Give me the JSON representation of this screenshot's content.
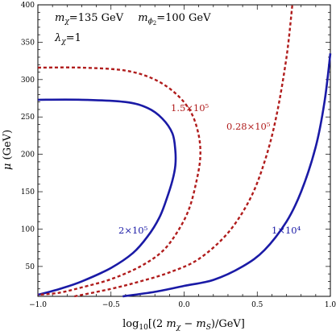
{
  "chart_data": {
    "type": "line",
    "xlabel": "log₁₀[(2 m_χ − m_S)/GeV]",
    "ylabel": "μ (GeV)",
    "xlim": [
      -1.0,
      1.0
    ],
    "ylim": [
      10,
      400
    ],
    "xticks": [
      -1.0,
      -0.5,
      0.0,
      0.5,
      1.0
    ],
    "xtick_labels": [
      "−1.0",
      "−0.5",
      "0.0",
      "0.5",
      "1.0"
    ],
    "yticks": [
      50,
      100,
      150,
      200,
      250,
      300,
      350,
      400
    ],
    "ytick_labels": [
      "50",
      "100",
      "150",
      "200",
      "250",
      "300",
      "350",
      "400"
    ],
    "annotations": {
      "line1": "m_χ=135 GeV   m_φ₂=100 GeV",
      "line2": "λ_χ=1"
    },
    "series": [
      {
        "label": "2×10⁵",
        "style": "solid",
        "color": "#1a1aa6",
        "points": [
          [
            -1.0,
            273
          ],
          [
            -0.7,
            273
          ],
          [
            -0.4,
            270
          ],
          [
            -0.25,
            262
          ],
          [
            -0.15,
            248
          ],
          [
            -0.08,
            228
          ],
          [
            -0.06,
            205
          ],
          [
            -0.06,
            185
          ],
          [
            -0.08,
            165
          ],
          [
            -0.12,
            140
          ],
          [
            -0.17,
            115
          ],
          [
            -0.25,
            90
          ],
          [
            -0.35,
            68
          ],
          [
            -0.5,
            48
          ],
          [
            -0.7,
            30
          ],
          [
            -0.85,
            20
          ],
          [
            -1.0,
            12
          ]
        ]
      },
      {
        "label": "1.5×10⁵",
        "style": "dashed",
        "color": "#b01c1c",
        "points": [
          [
            -1.0,
            316
          ],
          [
            -0.7,
            316
          ],
          [
            -0.4,
            312
          ],
          [
            -0.2,
            300
          ],
          [
            -0.05,
            280
          ],
          [
            0.05,
            255
          ],
          [
            0.1,
            225
          ],
          [
            0.11,
            195
          ],
          [
            0.08,
            160
          ],
          [
            0.03,
            125
          ],
          [
            -0.05,
            95
          ],
          [
            -0.15,
            70
          ],
          [
            -0.3,
            50
          ],
          [
            -0.5,
            33
          ],
          [
            -0.7,
            22
          ],
          [
            -0.85,
            15
          ],
          [
            -1.0,
            12
          ]
        ]
      },
      {
        "label": "0.28×10⁵",
        "style": "dashed",
        "color": "#b01c1c",
        "points": [
          [
            -0.75,
            10
          ],
          [
            -0.5,
            20
          ],
          [
            -0.3,
            30
          ],
          [
            -0.1,
            42
          ],
          [
            0.1,
            60
          ],
          [
            0.3,
            95
          ],
          [
            0.45,
            140
          ],
          [
            0.55,
            190
          ],
          [
            0.63,
            250
          ],
          [
            0.7,
            330
          ],
          [
            0.74,
            400
          ]
        ]
      },
      {
        "label": "1×10⁴",
        "style": "solid",
        "color": "#1a1aa6",
        "points": [
          [
            -0.42,
            10
          ],
          [
            -0.2,
            16
          ],
          [
            0.0,
            24
          ],
          [
            0.2,
            32
          ],
          [
            0.4,
            50
          ],
          [
            0.55,
            72
          ],
          [
            0.7,
            110
          ],
          [
            0.8,
            150
          ],
          [
            0.9,
            210
          ],
          [
            0.96,
            270
          ],
          [
            1.0,
            335
          ]
        ]
      }
    ]
  },
  "labels": {
    "c2e5": "2×10⁵",
    "c15e5": "1.5×10⁵",
    "c028e5": "0.28×10⁵",
    "c1e4": "1×10⁴"
  }
}
